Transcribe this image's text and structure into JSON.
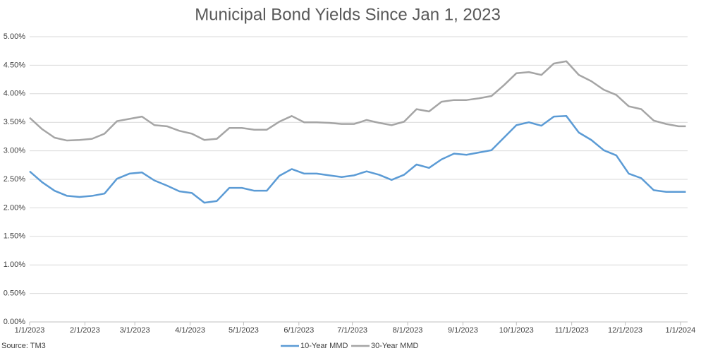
{
  "chart_data": {
    "type": "line",
    "title": "Municipal Bond Yields Since Jan 1, 2023",
    "source": "Source: TM3",
    "x": [
      "2023-01-01",
      "2023-01-08",
      "2023-01-15",
      "2023-01-22",
      "2023-01-29",
      "2023-02-05",
      "2023-02-12",
      "2023-02-19",
      "2023-02-26",
      "2023-03-05",
      "2023-03-12",
      "2023-03-19",
      "2023-03-26",
      "2023-04-02",
      "2023-04-09",
      "2023-04-16",
      "2023-04-23",
      "2023-04-30",
      "2023-05-07",
      "2023-05-14",
      "2023-05-21",
      "2023-05-28",
      "2023-06-04",
      "2023-06-11",
      "2023-06-18",
      "2023-06-25",
      "2023-07-02",
      "2023-07-09",
      "2023-07-16",
      "2023-07-23",
      "2023-07-30",
      "2023-08-06",
      "2023-08-13",
      "2023-08-20",
      "2023-08-27",
      "2023-09-03",
      "2023-09-10",
      "2023-09-17",
      "2023-09-24",
      "2023-10-01",
      "2023-10-08",
      "2023-10-15",
      "2023-10-22",
      "2023-10-29",
      "2023-11-05",
      "2023-11-12",
      "2023-11-19",
      "2023-11-26",
      "2023-12-03",
      "2023-12-10",
      "2023-12-17",
      "2023-12-24",
      "2023-12-31",
      "2024-01-04"
    ],
    "series": [
      {
        "name": "10-Year MMD",
        "color": "#5b9bd5",
        "values": [
          2.64,
          2.45,
          2.3,
          2.21,
          2.19,
          2.21,
          2.25,
          2.51,
          2.6,
          2.62,
          2.48,
          2.39,
          2.29,
          2.26,
          2.09,
          2.12,
          2.35,
          2.35,
          2.3,
          2.3,
          2.56,
          2.68,
          2.6,
          2.6,
          2.57,
          2.54,
          2.57,
          2.64,
          2.58,
          2.49,
          2.58,
          2.76,
          2.7,
          2.85,
          2.95,
          2.93,
          2.97,
          3.01,
          3.23,
          3.45,
          3.5,
          3.44,
          3.6,
          3.61,
          3.32,
          3.19,
          3.01,
          2.92,
          2.6,
          2.52,
          2.31,
          2.28,
          2.28,
          2.28
        ]
      },
      {
        "name": "30-Year MMD",
        "color": "#a5a5a5",
        "values": [
          3.58,
          3.38,
          3.23,
          3.18,
          3.19,
          3.21,
          3.3,
          3.52,
          3.56,
          3.6,
          3.45,
          3.43,
          3.35,
          3.3,
          3.19,
          3.21,
          3.4,
          3.4,
          3.37,
          3.37,
          3.51,
          3.61,
          3.5,
          3.5,
          3.49,
          3.47,
          3.47,
          3.54,
          3.49,
          3.45,
          3.51,
          3.73,
          3.69,
          3.86,
          3.89,
          3.89,
          3.92,
          3.96,
          4.15,
          4.36,
          4.38,
          4.33,
          4.53,
          4.57,
          4.33,
          4.22,
          4.07,
          3.98,
          3.78,
          3.73,
          3.53,
          3.47,
          3.43,
          3.43
        ]
      }
    ],
    "xlim": [
      "2023-01-01",
      "2024-01-05"
    ],
    "xticks": [
      {
        "value": "2023-01-01",
        "label": "1/1/2023"
      },
      {
        "value": "2023-02-01",
        "label": "2/1/2023"
      },
      {
        "value": "2023-03-01",
        "label": "3/1/2023"
      },
      {
        "value": "2023-04-01",
        "label": "4/1/2023"
      },
      {
        "value": "2023-05-01",
        "label": "5/1/2023"
      },
      {
        "value": "2023-06-01",
        "label": "6/1/2023"
      },
      {
        "value": "2023-07-01",
        "label": "7/1/2023"
      },
      {
        "value": "2023-08-01",
        "label": "8/1/2023"
      },
      {
        "value": "2023-09-01",
        "label": "9/1/2023"
      },
      {
        "value": "2023-10-01",
        "label": "10/1/2023"
      },
      {
        "value": "2023-11-01",
        "label": "11/1/2023"
      },
      {
        "value": "2023-12-01",
        "label": "12/1/2023"
      },
      {
        "value": "2024-01-01",
        "label": "1/1/2024"
      }
    ],
    "ylim": [
      0,
      5
    ],
    "yticks": [
      {
        "value": 0,
        "label": "0.00%"
      },
      {
        "value": 0.5,
        "label": "0.50%"
      },
      {
        "value": 1,
        "label": "1.00%"
      },
      {
        "value": 1.5,
        "label": "1.50%"
      },
      {
        "value": 2,
        "label": "2.00%"
      },
      {
        "value": 2.5,
        "label": "2.50%"
      },
      {
        "value": 3,
        "label": "3.00%"
      },
      {
        "value": 3.5,
        "label": "3.50%"
      },
      {
        "value": 4,
        "label": "4.00%"
      },
      {
        "value": 4.5,
        "label": "4.50%"
      },
      {
        "value": 5,
        "label": "5.00%"
      }
    ],
    "grid": true,
    "legend": "bottom"
  }
}
